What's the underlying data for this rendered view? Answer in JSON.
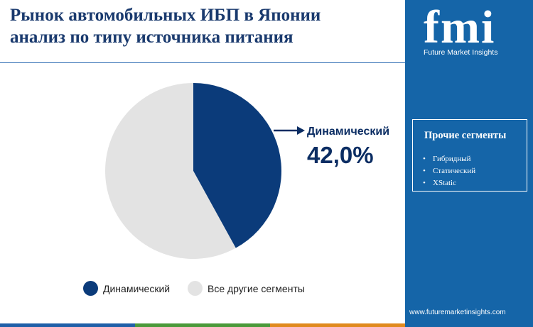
{
  "header": {
    "title_line1": "Рынок автомобильных ИБП в Японии",
    "title_line2": "анализ по типу источника питания"
  },
  "chart_data": {
    "type": "pie",
    "slices": [
      {
        "name": "Динамический",
        "value": 42.0,
        "color": "#0b3b7a"
      },
      {
        "name": "Все другие сегменты",
        "value": 58.0,
        "color": "#e3e3e3"
      }
    ],
    "callout": {
      "label": "Динамический",
      "value_text": "42,0%"
    },
    "legend": [
      "Динамический",
      "Все другие сегменты"
    ],
    "legend_placement": "bottom"
  },
  "sidebar": {
    "logo_text": "fmi",
    "logo_subtitle": "Future Market Insights",
    "segments_title": "Прочие сегменты",
    "segments": [
      "Гибридный",
      "Статический",
      "XStatic"
    ],
    "website": "www.futuremarketinsights.com"
  },
  "colors": {
    "title": "#1a3a6e",
    "sidebar_bg": "#1565a8",
    "accent_dark": "#0b3b7a",
    "bottom_bar": [
      "#1f5fa8",
      "#4a9a3a",
      "#e08a1e",
      "#1f5fa8"
    ]
  },
  "icons": [
    "logo-icon",
    "arrow-right-icon"
  ]
}
